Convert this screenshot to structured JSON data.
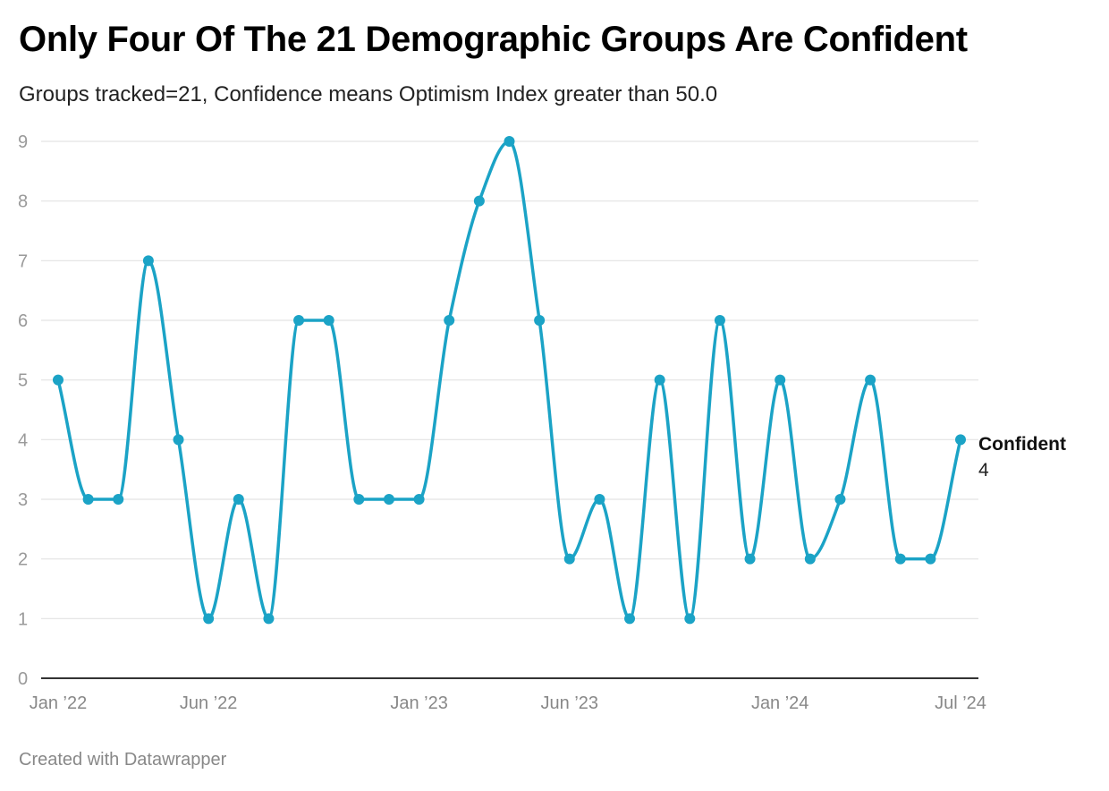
{
  "header": {
    "title": "Only Four Of The 21 Demographic Groups Are Confident",
    "subtitle": "Groups tracked=21, Confidence means Optimism Index greater than 50.0"
  },
  "footer": {
    "credit": "Created with Datawrapper"
  },
  "chart_data": {
    "type": "line",
    "title": "Only Four Of The 21 Demographic Groups Are Confident",
    "subtitle": "Groups tracked=21, Confidence means Optimism Index greater than 50.0",
    "xlabel": "",
    "ylabel": "",
    "ylim": [
      0,
      9
    ],
    "y_ticks": [
      0,
      1,
      2,
      3,
      4,
      5,
      6,
      7,
      8,
      9
    ],
    "x_ticks": [
      {
        "index": 0,
        "label": "Jan ’22"
      },
      {
        "index": 5,
        "label": "Jun ’22"
      },
      {
        "index": 12,
        "label": "Jan ’23"
      },
      {
        "index": 17,
        "label": "Jun ’23"
      },
      {
        "index": 24,
        "label": "Jan ’24"
      },
      {
        "index": 30,
        "label": "Jul ’24"
      }
    ],
    "grid": true,
    "x": [
      "Jan 2022",
      "Feb 2022",
      "Mar 2022",
      "Apr 2022",
      "May 2022",
      "Jun 2022",
      "Jul 2022",
      "Aug 2022",
      "Sep 2022",
      "Oct 2022",
      "Nov 2022",
      "Dec 2022",
      "Jan 2023",
      "Feb 2023",
      "Mar 2023",
      "Apr 2023",
      "May 2023",
      "Jun 2023",
      "Jul 2023",
      "Aug 2023",
      "Sep 2023",
      "Oct 2023",
      "Nov 2023",
      "Dec 2023",
      "Jan 2024",
      "Feb 2024",
      "Mar 2024",
      "Apr 2024",
      "May 2024",
      "Jun 2024",
      "Jul 2024"
    ],
    "series": [
      {
        "name": "Confident",
        "color": "#1ba3c6",
        "values": [
          5,
          3,
          3,
          7,
          4,
          1,
          3,
          1,
          6,
          6,
          3,
          3,
          3,
          6,
          8,
          9,
          6,
          2,
          3,
          1,
          5,
          1,
          6,
          2,
          5,
          2,
          3,
          5,
          2,
          2,
          4
        ]
      }
    ],
    "end_label": {
      "name": "Confident",
      "value": "4"
    }
  }
}
